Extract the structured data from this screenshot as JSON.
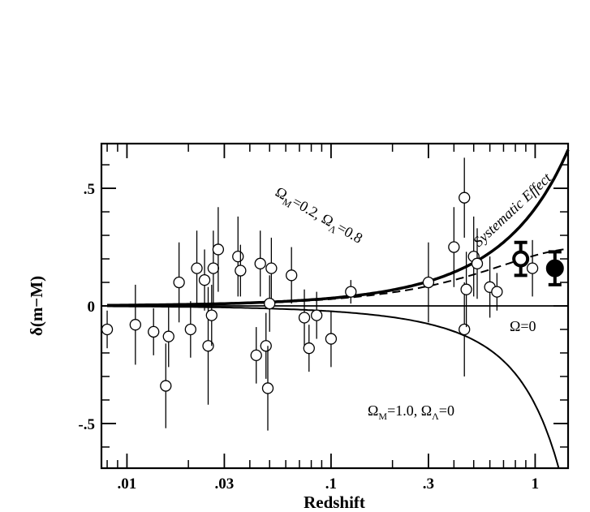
{
  "chart_data": {
    "type": "scatter",
    "xlabel": "Redshift",
    "ylabel": "δ(m−M)",
    "xscale": "log",
    "xlim": [
      0.0075,
      1.45
    ],
    "ylim": [
      -0.69,
      0.69
    ],
    "x_ticks": [
      {
        "value": 0.01,
        "label": ".01"
      },
      {
        "value": 0.03,
        "label": ".03"
      },
      {
        "value": 0.1,
        "label": ".1"
      },
      {
        "value": 0.3,
        "label": ".3"
      },
      {
        "value": 1,
        "label": "1"
      }
    ],
    "y_ticks": [
      {
        "value": 0.5,
        "label": ".5"
      },
      {
        "value": 0,
        "label": "0"
      },
      {
        "value": -0.5,
        "label": "-.5"
      }
    ],
    "points": [
      {
        "z": 0.008,
        "d": -0.1,
        "err": 0.08
      },
      {
        "z": 0.011,
        "d": -0.08,
        "err": 0.17
      },
      {
        "z": 0.0135,
        "d": -0.11,
        "err": 0.1
      },
      {
        "z": 0.0155,
        "d": -0.34,
        "err": 0.18
      },
      {
        "z": 0.016,
        "d": -0.13,
        "err": 0.13
      },
      {
        "z": 0.018,
        "d": 0.1,
        "err": 0.17
      },
      {
        "z": 0.0205,
        "d": -0.1,
        "err": 0.12
      },
      {
        "z": 0.022,
        "d": 0.16,
        "err": 0.16
      },
      {
        "z": 0.024,
        "d": 0.11,
        "err": 0.13
      },
      {
        "z": 0.025,
        "d": -0.17,
        "err": 0.25
      },
      {
        "z": 0.026,
        "d": -0.04,
        "err": 0.13
      },
      {
        "z": 0.0265,
        "d": 0.16,
        "err": 0.16
      },
      {
        "z": 0.028,
        "d": 0.24,
        "err": 0.18
      },
      {
        "z": 0.035,
        "d": 0.21,
        "err": 0.17
      },
      {
        "z": 0.036,
        "d": 0.15,
        "err": 0.11
      },
      {
        "z": 0.043,
        "d": -0.21,
        "err": 0.12
      },
      {
        "z": 0.045,
        "d": 0.18,
        "err": 0.14
      },
      {
        "z": 0.048,
        "d": -0.17,
        "err": 0.14
      },
      {
        "z": 0.049,
        "d": -0.35,
        "err": 0.18
      },
      {
        "z": 0.05,
        "d": 0.01,
        "err": 0.12
      },
      {
        "z": 0.051,
        "d": 0.16,
        "err": 0.13
      },
      {
        "z": 0.064,
        "d": 0.13,
        "err": 0.12
      },
      {
        "z": 0.074,
        "d": -0.05,
        "err": 0.12
      },
      {
        "z": 0.078,
        "d": -0.18,
        "err": 0.1
      },
      {
        "z": 0.085,
        "d": -0.04,
        "err": 0.1
      },
      {
        "z": 0.1,
        "d": -0.14,
        "err": 0.12
      },
      {
        "z": 0.125,
        "d": 0.06,
        "err": 0.05
      },
      {
        "z": 0.3,
        "d": 0.1,
        "err": 0.17
      },
      {
        "z": 0.4,
        "d": 0.25,
        "err": 0.17
      },
      {
        "z": 0.45,
        "d": -0.1,
        "err": 0.2
      },
      {
        "z": 0.45,
        "d": 0.46,
        "err": 0.17
      },
      {
        "z": 0.46,
        "d": 0.07,
        "err": 0.16
      },
      {
        "z": 0.5,
        "d": 0.21,
        "err": 0.17
      },
      {
        "z": 0.52,
        "d": 0.18,
        "err": 0.15
      },
      {
        "z": 0.6,
        "d": 0.08,
        "err": 0.13
      },
      {
        "z": 0.65,
        "d": 0.06,
        "err": 0.08
      },
      {
        "z": 0.97,
        "d": 0.16,
        "err": 0.12
      }
    ],
    "binned_points": [
      {
        "z": 0.85,
        "d": 0.2,
        "err": 0.07,
        "style": "open-bold"
      },
      {
        "z": 1.25,
        "d": 0.16,
        "err": 0.07,
        "style": "filled"
      }
    ],
    "curves": [
      {
        "id": "lambda",
        "style": "thick-solid"
      },
      {
        "id": "systematic",
        "style": "dashed"
      },
      {
        "id": "omega0",
        "style": "thin-solid"
      },
      {
        "id": "omegaM1",
        "style": "thin-solid"
      }
    ],
    "annotations": {
      "lambda_curve": "Ω_M=0.2,  Ω_Λ=0.8",
      "systematic": "Systematic Effect",
      "omega0": "Ω=0",
      "omegaM1": "Ω_M=1.0,  Ω_Λ=0"
    }
  }
}
